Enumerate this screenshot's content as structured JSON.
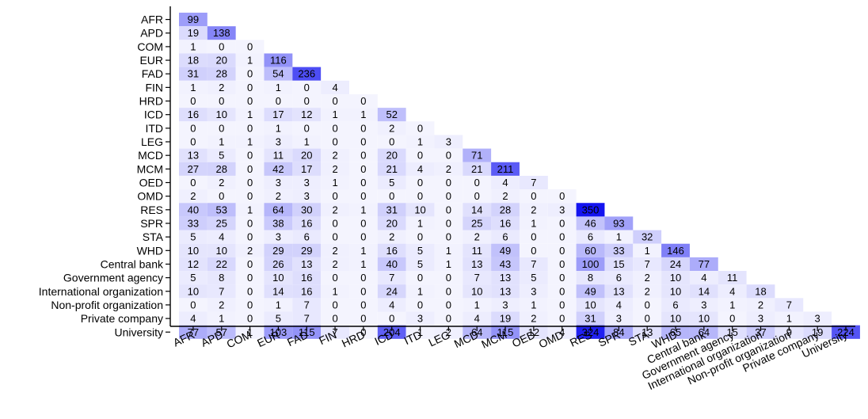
{
  "chart_data": {
    "type": "heatmap",
    "layout": "lower-triangular",
    "rows": [
      "AFR",
      "APD",
      "COM",
      "EUR",
      "FAD",
      "FIN",
      "HRD",
      "ICD",
      "ITD",
      "LEG",
      "MCD",
      "MCM",
      "OED",
      "OMD",
      "RES",
      "SPR",
      "STA",
      "WHD",
      "Central bank",
      "Government agency",
      "International organization",
      "Non-profit organization",
      "Private company",
      "University"
    ],
    "columns": [
      "AFR",
      "APD",
      "COM",
      "EUR",
      "FAD",
      "FIN",
      "HRD",
      "ICD",
      "ITD",
      "LEG",
      "MCD",
      "MCM",
      "OED",
      "OMD",
      "RES",
      "SPR",
      "STA",
      "WHD",
      "Central bank",
      "Government agency",
      "International organization",
      "Non-profit organization",
      "Private company",
      "University"
    ],
    "values": [
      [
        99
      ],
      [
        19,
        138
      ],
      [
        1,
        0,
        0
      ],
      [
        18,
        20,
        1,
        116
      ],
      [
        31,
        28,
        0,
        54,
        236
      ],
      [
        1,
        2,
        0,
        1,
        0,
        4
      ],
      [
        0,
        0,
        0,
        0,
        0,
        0,
        0
      ],
      [
        16,
        10,
        1,
        17,
        12,
        1,
        1,
        52
      ],
      [
        0,
        0,
        0,
        1,
        0,
        0,
        0,
        2,
        0
      ],
      [
        0,
        1,
        1,
        3,
        1,
        0,
        0,
        0,
        1,
        3
      ],
      [
        13,
        5,
        0,
        11,
        20,
        2,
        0,
        20,
        0,
        0,
        71
      ],
      [
        27,
        28,
        0,
        42,
        17,
        2,
        0,
        21,
        4,
        2,
        21,
        211
      ],
      [
        0,
        2,
        0,
        3,
        3,
        1,
        0,
        5,
        0,
        0,
        0,
        4,
        7
      ],
      [
        2,
        0,
        0,
        2,
        3,
        0,
        0,
        0,
        0,
        0,
        0,
        2,
        0,
        0
      ],
      [
        40,
        53,
        1,
        64,
        30,
        2,
        1,
        31,
        10,
        0,
        14,
        28,
        2,
        3,
        350
      ],
      [
        33,
        25,
        0,
        38,
        16,
        0,
        0,
        20,
        1,
        0,
        25,
        16,
        1,
        0,
        46,
        93
      ],
      [
        5,
        4,
        0,
        3,
        6,
        0,
        0,
        2,
        0,
        0,
        2,
        6,
        0,
        0,
        6,
        1,
        32
      ],
      [
        10,
        10,
        2,
        29,
        29,
        2,
        1,
        16,
        5,
        1,
        11,
        49,
        0,
        0,
        60,
        33,
        1,
        146
      ],
      [
        12,
        22,
        0,
        26,
        13,
        2,
        1,
        40,
        5,
        1,
        13,
        43,
        7,
        0,
        100,
        15,
        7,
        24,
        77
      ],
      [
        5,
        8,
        0,
        10,
        16,
        0,
        0,
        7,
        0,
        0,
        7,
        13,
        5,
        0,
        8,
        6,
        2,
        10,
        4,
        11
      ],
      [
        10,
        7,
        0,
        14,
        16,
        1,
        0,
        24,
        1,
        0,
        10,
        13,
        3,
        0,
        49,
        13,
        2,
        10,
        14,
        4,
        18
      ],
      [
        0,
        2,
        0,
        1,
        7,
        0,
        0,
        4,
        0,
        0,
        1,
        3,
        1,
        0,
        10,
        4,
        0,
        6,
        3,
        1,
        2,
        7
      ],
      [
        4,
        1,
        0,
        5,
        7,
        0,
        0,
        0,
        3,
        0,
        4,
        19,
        2,
        0,
        31,
        3,
        0,
        10,
        10,
        0,
        3,
        1,
        3
      ],
      [
        77,
        57,
        1,
        103,
        115,
        7,
        0,
        204,
        1,
        2,
        64,
        115,
        12,
        4,
        324,
        84,
        13,
        65,
        64,
        15,
        37,
        9,
        19,
        224
      ]
    ],
    "color_scale": {
      "low": "#ffffff",
      "high": "#1414f0",
      "vmax": 350
    },
    "grid": false,
    "legend": "none"
  }
}
